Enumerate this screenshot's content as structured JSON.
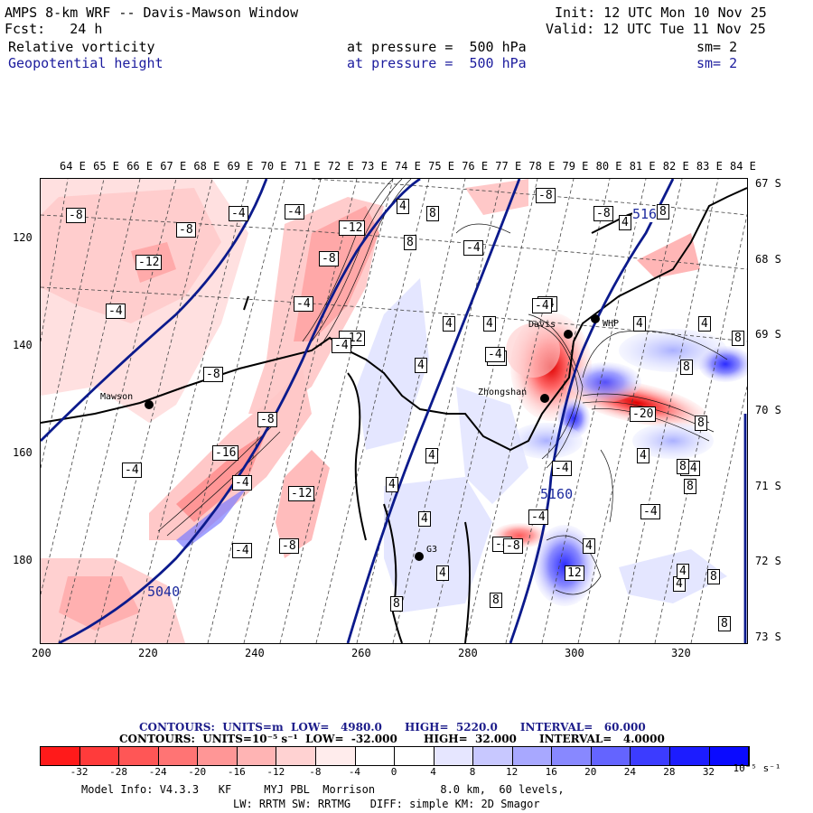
{
  "header": {
    "title": "AMPS 8-km WRF -- Davis-Mawson Window",
    "init": "Init: 12 UTC Mon 10 Nov 25",
    "fcst_label": "Fcst:   24 h",
    "valid": "Valid: 12 UTC Tue 11 Nov 25",
    "field1": {
      "name": "Relative vorticity",
      "level": "at pressure =  500 hPa",
      "sm": "sm= 2"
    },
    "field2": {
      "name": "Geopotential height",
      "level": "at pressure =  500 hPa",
      "sm": "sm= 2"
    }
  },
  "map": {
    "lon_labels": [
      "64 E",
      "65 E",
      "66 E",
      "67 E",
      "68 E",
      "69 E",
      "70 E",
      "71 E",
      "72 E",
      "73 E",
      "74 E",
      "75 E",
      "76 E",
      "77 E",
      "78 E",
      "79 E",
      "80 E",
      "81 E",
      "82 E",
      "83 E",
      "84 E"
    ],
    "lat_labels": [
      "67 S",
      "68 S",
      "69 S",
      "70 S",
      "71 S",
      "72 S",
      "73 S"
    ],
    "x_axis": [
      "200",
      "220",
      "240",
      "260",
      "280",
      "300",
      "320"
    ],
    "y_axis": [
      "120",
      "140",
      "160",
      "180"
    ],
    "stations": [
      {
        "name": "Mawson"
      },
      {
        "name": "Davis"
      },
      {
        "name": "Zhongshan"
      },
      {
        "name": "WHP"
      },
      {
        "name": "G3"
      }
    ],
    "height_labels": [
      "5160",
      "5160",
      "5040"
    ],
    "vort_labels": [
      "-8",
      "-8",
      "-4",
      "-4",
      "-12",
      "-12",
      "-4",
      "-8",
      "-4",
      "-12",
      "-8",
      "-4",
      "-8",
      "-16",
      "-4",
      "-12",
      "-8",
      "-4",
      "-4",
      "4",
      "8",
      "8",
      "-4",
      "-8",
      "4",
      "-4",
      "4",
      "4",
      "-4",
      "-8",
      "8",
      "8",
      "4",
      "4",
      "8",
      "-20",
      "8",
      "4",
      "-4",
      "4",
      "4",
      "-4",
      "-8",
      "8",
      "12",
      "4",
      "8",
      "8",
      "4",
      "8",
      "8",
      "4",
      "4",
      "8",
      "4",
      "-4",
      "-8",
      "-4",
      "-4",
      "-4",
      "4"
    ]
  },
  "contour_info": {
    "line1": "CONTOURS:  UNITS=m  LOW=   4980.0      HIGH=  5220.0      INTERVAL=   60.000",
    "line2": "CONTOURS:  UNITS=10⁻⁵ s⁻¹  LOW=  -32.000       HIGH=  32.000      INTERVAL=   4.0000"
  },
  "legend": {
    "colors": [
      "#ff1a1a",
      "#ff3b3b",
      "#ff5656",
      "#ff7474",
      "#ff9696",
      "#ffb4b4",
      "#ffd2d2",
      "#ffecec",
      "#ffffff",
      "#ffffff",
      "#e6e6ff",
      "#c8c8ff",
      "#a8a8ff",
      "#8888ff",
      "#6464ff",
      "#3c3cff",
      "#1c1cff",
      "#0a0aff"
    ],
    "ticks": [
      "-32",
      "-28",
      "-24",
      "-20",
      "-16",
      "-12",
      "-8",
      "-4",
      "0",
      "4",
      "8",
      "12",
      "16",
      "20",
      "24",
      "28",
      "32"
    ],
    "unit": "10⁻⁵ s⁻¹"
  },
  "footer": {
    "line1": "Model Info: V4.3.3   KF     MYJ PBL  Morrison          8.0 km,  60 levels,",
    "line2": "LW: RRTM SW: RRTMG   DIFF: simple KM: 2D Smagor"
  }
}
